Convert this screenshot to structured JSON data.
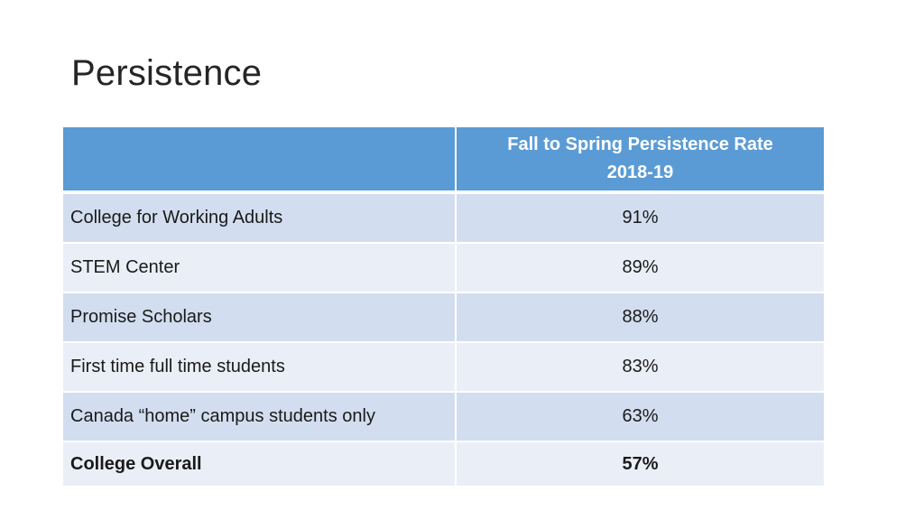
{
  "title": "Persistence",
  "table": {
    "header": {
      "line1": "Fall to Spring Persistence Rate",
      "line2": "2018-19"
    },
    "rows": [
      {
        "label": "College for Working Adults",
        "value": "91%"
      },
      {
        "label": "STEM Center",
        "value": "89%"
      },
      {
        "label": "Promise Scholars",
        "value": "88%"
      },
      {
        "label": "First time full time students",
        "value": "83%"
      },
      {
        "label": "Canada “home” campus students only",
        "value": "63%"
      },
      {
        "label": "College Overall",
        "value": "57%"
      }
    ]
  },
  "colors": {
    "header": "#5b9bd5",
    "row_odd": "#d2deef",
    "row_even": "#eaeff7"
  }
}
